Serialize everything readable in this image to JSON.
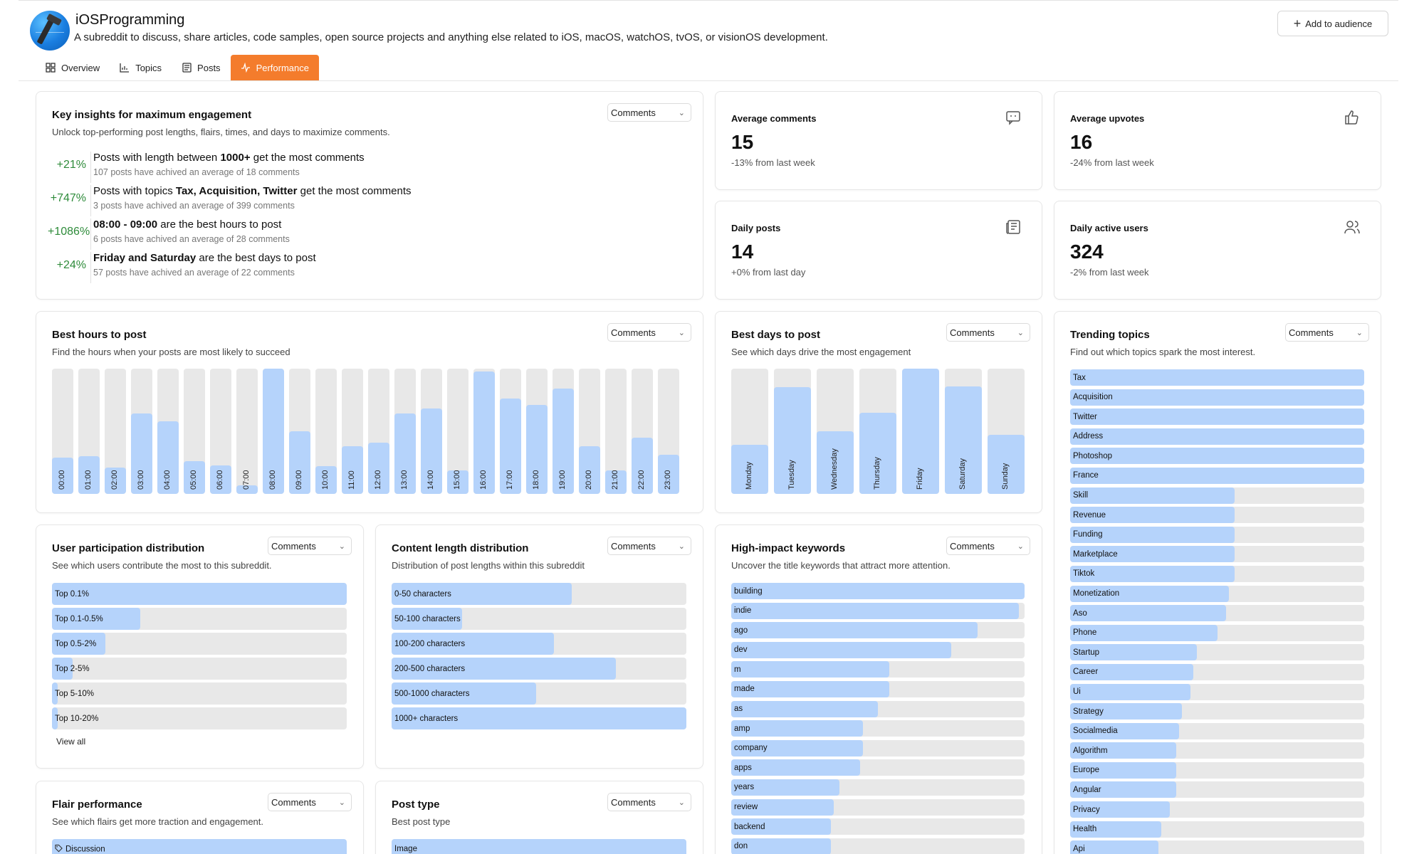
{
  "header": {
    "title": "iOSProgramming",
    "description": "A subreddit to discuss, share articles, code samples, open source projects and anything else related to iOS, macOS, watchOS, tvOS, or visionOS development.",
    "add_button": "Add to audience",
    "tabs": [
      {
        "label": "Overview",
        "icon": "grid-icon"
      },
      {
        "label": "Topics",
        "icon": "bar-chart-icon"
      },
      {
        "label": "Posts",
        "icon": "newspaper-icon"
      },
      {
        "label": "Performance",
        "icon": "activity-icon",
        "active": true
      }
    ]
  },
  "colors": {
    "accent": "#f47c2c",
    "bar_fill": "#b5d3fb",
    "bar_track": "#e8e8e8",
    "positive": "#2e8b3a"
  },
  "dropdown_value": "Comments",
  "insights": {
    "title": "Key insights for maximum engagement",
    "subtitle": "Unlock top-performing post lengths, flairs, times, and days to maximize comments.",
    "items": [
      {
        "pct": "+21%",
        "pre": "Posts with length between ",
        "bold": "1000+",
        "post": " get the most comments",
        "meta": "107 posts have achived an average of 18 comments"
      },
      {
        "pct": "+747%",
        "pre": "Posts with topics ",
        "bold": "Tax, Acquisition, Twitter",
        "post": " get the most comments",
        "meta": "3 posts have achived an average of 399 comments"
      },
      {
        "pct": "+1086%",
        "pre": "",
        "bold": "08:00 - 09:00",
        "post": " are the best hours to post",
        "meta": "6 posts have achived an average of 28 comments"
      },
      {
        "pct": "+24%",
        "pre": "",
        "bold": "Friday and Saturday",
        "post": " are the best days to post",
        "meta": "57 posts have achived an average of 22 comments"
      }
    ]
  },
  "stats": [
    {
      "title": "Average comments",
      "value": "15",
      "change": "-13% from last week",
      "icon": "comment-icon"
    },
    {
      "title": "Average upvotes",
      "value": "16",
      "change": "-24% from last week",
      "icon": "thumbs-up-icon"
    },
    {
      "title": "Daily posts",
      "value": "14",
      "change": "+0% from last day",
      "icon": "newspaper-icon"
    },
    {
      "title": "Daily active users",
      "value": "324",
      "change": "-2% from last week",
      "icon": "users-icon"
    }
  ],
  "best_hours": {
    "title": "Best hours to post",
    "subtitle": "Find the hours when your posts are most likely to succeed",
    "labels": [
      "00:00",
      "01:00",
      "02:00",
      "03:00",
      "04:00",
      "05:00",
      "06:00",
      "07:00",
      "08:00",
      "09:00",
      "10:00",
      "11:00",
      "12:00",
      "13:00",
      "14:00",
      "15:00",
      "16:00",
      "17:00",
      "18:00",
      "19:00",
      "20:00",
      "21:00",
      "22:00",
      "23:00"
    ],
    "values": [
      0.29,
      0.3,
      0.21,
      0.64,
      0.58,
      0.26,
      0.23,
      0.07,
      1.0,
      0.5,
      0.22,
      0.38,
      0.41,
      0.64,
      0.68,
      0.19,
      0.98,
      0.76,
      0.71,
      0.84,
      0.38,
      0.19,
      0.45,
      0.31
    ]
  },
  "best_days": {
    "title": "Best days to post",
    "subtitle": "See which days drive the most engagement",
    "labels": [
      "Monday",
      "Tuesday",
      "Wednesday",
      "Thursday",
      "Friday",
      "Saturday",
      "Sunday"
    ],
    "values": [
      0.39,
      0.85,
      0.5,
      0.65,
      1.0,
      0.86,
      0.47
    ]
  },
  "trending": {
    "title": "Trending topics",
    "subtitle": "Find out which topics spark the most interest.",
    "items": [
      {
        "label": "Tax",
        "value": 1.0
      },
      {
        "label": "Acquisition",
        "value": 1.0
      },
      {
        "label": "Twitter",
        "value": 1.0
      },
      {
        "label": "Address",
        "value": 1.0
      },
      {
        "label": "Photoshop",
        "value": 1.0
      },
      {
        "label": "France",
        "value": 1.0
      },
      {
        "label": "Skill",
        "value": 0.56
      },
      {
        "label": "Revenue",
        "value": 0.56
      },
      {
        "label": "Funding",
        "value": 0.56
      },
      {
        "label": "Marketplace",
        "value": 0.56
      },
      {
        "label": "Tiktok",
        "value": 0.56
      },
      {
        "label": "Monetization",
        "value": 0.54
      },
      {
        "label": "Aso",
        "value": 0.53
      },
      {
        "label": "Phone",
        "value": 0.5
      },
      {
        "label": "Startup",
        "value": 0.43
      },
      {
        "label": "Career",
        "value": 0.42
      },
      {
        "label": "Ui",
        "value": 0.41
      },
      {
        "label": "Strategy",
        "value": 0.38
      },
      {
        "label": "Socialmedia",
        "value": 0.37
      },
      {
        "label": "Algorithm",
        "value": 0.36
      },
      {
        "label": "Europe",
        "value": 0.36
      },
      {
        "label": "Angular",
        "value": 0.36
      },
      {
        "label": "Privacy",
        "value": 0.34
      },
      {
        "label": "Health",
        "value": 0.31
      },
      {
        "label": "Api",
        "value": 0.3
      }
    ]
  },
  "participation": {
    "title": "User participation distribution",
    "subtitle": "See which users contribute the most to this subreddit.",
    "items": [
      {
        "label": "Top 0.1%",
        "value": 1.0
      },
      {
        "label": "Top 0.1-0.5%",
        "value": 0.3
      },
      {
        "label": "Top 0.5-2%",
        "value": 0.18
      },
      {
        "label": "Top 2-5%",
        "value": 0.07
      },
      {
        "label": "Top 5-10%",
        "value": 0.02
      },
      {
        "label": "Top 10-20%",
        "value": 0.02
      }
    ],
    "view_all": "View all"
  },
  "content_length": {
    "title": "Content length distribution",
    "subtitle": "Distribution of post lengths within this subreddit",
    "items": [
      {
        "label": "0-50 characters",
        "value": 0.61
      },
      {
        "label": "50-100 characters",
        "value": 0.24
      },
      {
        "label": "100-200 characters",
        "value": 0.55
      },
      {
        "label": "200-500 characters",
        "value": 0.76
      },
      {
        "label": "500-1000 characters",
        "value": 0.49
      },
      {
        "label": "1000+ characters",
        "value": 1.0
      }
    ]
  },
  "keywords": {
    "title": "High-impact keywords",
    "subtitle": "Uncover the title keywords that attract more attention.",
    "items": [
      {
        "label": "building",
        "value": 1.0
      },
      {
        "label": "indie",
        "value": 0.98
      },
      {
        "label": "ago",
        "value": 0.84
      },
      {
        "label": "dev",
        "value": 0.75
      },
      {
        "label": "m",
        "value": 0.54
      },
      {
        "label": "made",
        "value": 0.54
      },
      {
        "label": "as",
        "value": 0.5
      },
      {
        "label": "amp",
        "value": 0.45
      },
      {
        "label": "company",
        "value": 0.45
      },
      {
        "label": "apps",
        "value": 0.44
      },
      {
        "label": "years",
        "value": 0.37
      },
      {
        "label": "review",
        "value": 0.35
      },
      {
        "label": "backend",
        "value": 0.34
      },
      {
        "label": "don",
        "value": 0.34
      }
    ]
  },
  "flair": {
    "title": "Flair performance",
    "subtitle": "See which flairs get more traction and engagement.",
    "items": [
      {
        "label": "Discussion",
        "value": 1.0
      }
    ]
  },
  "post_type": {
    "title": "Post type",
    "subtitle": "Best post type",
    "items": [
      {
        "label": "Image",
        "value": 1.0
      }
    ]
  }
}
